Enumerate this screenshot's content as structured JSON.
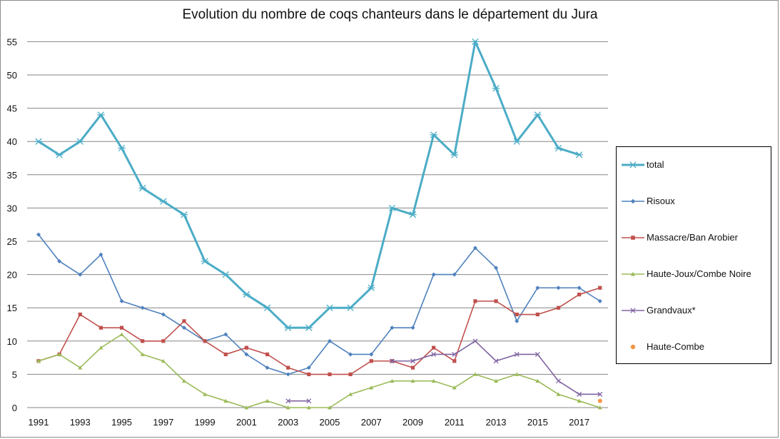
{
  "chart_data": {
    "type": "line",
    "title": "Evolution du nombre de coqs chanteurs dans le département du Jura",
    "xlabel": "",
    "ylabel": "",
    "ylim": [
      0,
      55
    ],
    "y_ticks": [
      0,
      5,
      10,
      15,
      20,
      25,
      30,
      35,
      40,
      45,
      50,
      55
    ],
    "x_range": [
      1991,
      2018
    ],
    "x_tick_labels": [
      "1991",
      "1993",
      "1995",
      "1997",
      "1999",
      "2001",
      "2003",
      "2005",
      "2007",
      "2009",
      "2011",
      "2013",
      "2015",
      "2017"
    ],
    "grid": "horizontal",
    "legend_position": "right",
    "series": [
      {
        "name": "total",
        "color": "#4bacc6",
        "marker": "star",
        "x": [
          1991,
          1992,
          1993,
          1994,
          1995,
          1996,
          1997,
          1998,
          1999,
          2000,
          2001,
          2002,
          2003,
          2004,
          2005,
          2006,
          2007,
          2008,
          2009,
          2010,
          2011,
          2012,
          2013,
          2014,
          2015,
          2016,
          2017
        ],
        "values": [
          40,
          38,
          40,
          44,
          39,
          33,
          31,
          29,
          22,
          20,
          17,
          15,
          12,
          12,
          15,
          15,
          18,
          30,
          29,
          41,
          38,
          55,
          48,
          40,
          44,
          39,
          38
        ]
      },
      {
        "name": "Risoux",
        "color": "#4f81bd",
        "marker": "diamond",
        "x": [
          1991,
          1992,
          1993,
          1994,
          1995,
          1996,
          1997,
          1998,
          1999,
          2000,
          2001,
          2002,
          2003,
          2004,
          2005,
          2006,
          2007,
          2008,
          2009,
          2010,
          2011,
          2012,
          2013,
          2014,
          2015,
          2016,
          2017,
          2018
        ],
        "values": [
          26,
          22,
          20,
          23,
          16,
          15,
          14,
          12,
          10,
          11,
          8,
          6,
          5,
          6,
          10,
          8,
          8,
          12,
          12,
          20,
          20,
          24,
          21,
          13,
          18,
          18,
          18,
          16
        ]
      },
      {
        "name": "Massacre/Ban Arobier",
        "color": "#c0504d",
        "marker": "square",
        "x": [
          1991,
          1992,
          1993,
          1994,
          1995,
          1996,
          1997,
          1998,
          1999,
          2000,
          2001,
          2002,
          2003,
          2004,
          2005,
          2006,
          2007,
          2008,
          2009,
          2010,
          2011,
          2012,
          2013,
          2014,
          2015,
          2016,
          2017,
          2018
        ],
        "values": [
          7,
          8,
          14,
          12,
          12,
          10,
          10,
          13,
          10,
          8,
          9,
          8,
          6,
          5,
          5,
          5,
          7,
          7,
          6,
          9,
          7,
          16,
          16,
          14,
          14,
          15,
          17,
          18
        ]
      },
      {
        "name": "Haute-Joux/Combe Noire",
        "color": "#9bbb59",
        "marker": "triangle",
        "x": [
          1991,
          1992,
          1993,
          1994,
          1995,
          1996,
          1997,
          1998,
          1999,
          2000,
          2001,
          2002,
          2003,
          2004,
          2005,
          2006,
          2007,
          2008,
          2009,
          2010,
          2011,
          2012,
          2013,
          2014,
          2015,
          2016,
          2017,
          2018
        ],
        "values": [
          7,
          8,
          6,
          9,
          11,
          8,
          7,
          4,
          2,
          1,
          0,
          1,
          0,
          0,
          0,
          2,
          3,
          4,
          4,
          4,
          3,
          5,
          4,
          5,
          4,
          2,
          1,
          0
        ]
      },
      {
        "name": "Grandvaux*",
        "color": "#8064a2",
        "marker": "x",
        "segments": [
          {
            "x": [
              2003,
              2004
            ],
            "values": [
              1,
              1
            ]
          },
          {
            "x": [
              2008,
              2009,
              2010,
              2011,
              2012,
              2013,
              2014,
              2015,
              2016,
              2017,
              2018
            ],
            "values": [
              7,
              7,
              8,
              8,
              10,
              7,
              8,
              8,
              4,
              2,
              2
            ]
          }
        ]
      },
      {
        "name": "Haute-Combe",
        "color": "#f79646",
        "marker": "circle",
        "x": [
          2018
        ],
        "values": [
          1
        ]
      }
    ]
  }
}
